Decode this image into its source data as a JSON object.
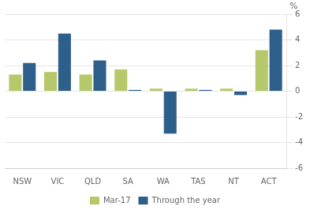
{
  "chart_data": {
    "type": "bar",
    "categories": [
      "NSW",
      "VIC",
      "QLD",
      "SA",
      "WA",
      "TAS",
      "NT",
      "ACT"
    ],
    "series": [
      {
        "name": "Mar-17",
        "color": "#b5c96a",
        "values": [
          1.3,
          1.5,
          1.3,
          1.7,
          0.2,
          0.2,
          0.2,
          3.2
        ]
      },
      {
        "name": "Through the year",
        "color": "#2e5f8a",
        "values": [
          2.2,
          4.5,
          2.4,
          0.1,
          -3.3,
          0.1,
          -0.3,
          4.8
        ]
      }
    ],
    "ylabel": "%",
    "ylim": [
      -6,
      6
    ],
    "yticks": [
      -6,
      -4,
      -2,
      0,
      2,
      4,
      6
    ],
    "grid": true,
    "legend": "bottom"
  }
}
